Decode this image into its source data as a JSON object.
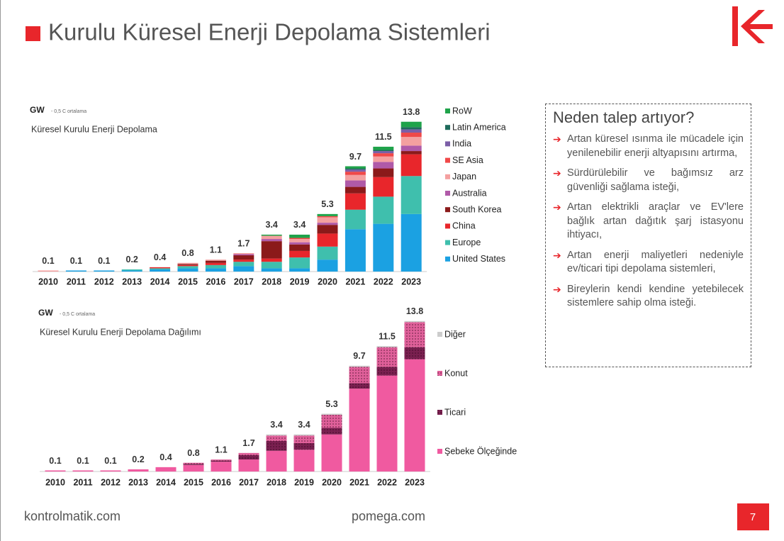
{
  "title": "Kurulu Küresel Enerji Depolama Sistemleri",
  "chart_data": [
    {
      "type": "stacked_bar",
      "unit": "GW",
      "note": "- 0,5 C ortalama",
      "title": "Küresel Kurulu Enerji Depolama",
      "categories": [
        "2010",
        "2011",
        "2012",
        "2013",
        "2014",
        "2015",
        "2016",
        "2017",
        "2018",
        "2019",
        "2020",
        "2021",
        "2022",
        "2023"
      ],
      "totals": [
        0.1,
        0.1,
        0.1,
        0.2,
        0.4,
        0.8,
        1.1,
        1.7,
        3.4,
        3.4,
        5.3,
        9.7,
        11.5,
        13.8
      ],
      "ylim": [
        0,
        14.5
      ],
      "series": [
        {
          "name": "United States",
          "color": "#1ba1e2",
          "values": [
            0,
            0.1,
            0.1,
            0.1,
            0.2,
            0.3,
            0.3,
            0.5,
            0.3,
            0.3,
            1.1,
            3.9,
            4.4,
            5.3
          ]
        },
        {
          "name": "Europe",
          "color": "#3fbfad",
          "values": [
            0,
            0,
            0,
            0.1,
            0.1,
            0.2,
            0.3,
            0.4,
            0.6,
            1.0,
            1.2,
            1.8,
            2.5,
            3.5
          ]
        },
        {
          "name": "China",
          "color": "#e8262b",
          "values": [
            0,
            0,
            0,
            0,
            0.1,
            0.1,
            0.2,
            0.2,
            0.3,
            0.6,
            1.2,
            1.5,
            1.8,
            2.0
          ]
        },
        {
          "name": "South Korea",
          "color": "#8b1a1a",
          "values": [
            0,
            0,
            0,
            0,
            0,
            0.1,
            0.2,
            0.4,
            1.6,
            0.6,
            0.8,
            0.6,
            0.8,
            0.3
          ]
        },
        {
          "name": "Australia",
          "color": "#b05aa8",
          "values": [
            0,
            0,
            0,
            0,
            0,
            0,
            0,
            0.1,
            0.2,
            0.2,
            0.2,
            0.6,
            0.6,
            0.5
          ]
        },
        {
          "name": "Japan",
          "color": "#f4a0a0",
          "values": [
            0.1,
            0,
            0,
            0,
            0,
            0.1,
            0.1,
            0.1,
            0.3,
            0.3,
            0.5,
            0.5,
            0.5,
            0.8
          ]
        },
        {
          "name": "SE Asia",
          "color": "#f04848",
          "values": [
            0,
            0,
            0,
            0,
            0,
            0,
            0,
            0,
            0,
            0.1,
            0.1,
            0.3,
            0.3,
            0.4
          ]
        },
        {
          "name": "India",
          "color": "#7b5ea7",
          "values": [
            0,
            0,
            0,
            0,
            0,
            0,
            0,
            0,
            0,
            0,
            0,
            0.2,
            0.2,
            0.3
          ]
        },
        {
          "name": "Latin America",
          "color": "#1e6b5c",
          "values": [
            0,
            0,
            0,
            0,
            0,
            0,
            0,
            0,
            0,
            0,
            0,
            0.1,
            0.1,
            0.2
          ]
        },
        {
          "name": "RoW",
          "color": "#1fa34a",
          "values": [
            0,
            0,
            0,
            0,
            0,
            0,
            0,
            0,
            0.1,
            0.3,
            0.2,
            0.2,
            0.3,
            0.5
          ]
        }
      ]
    },
    {
      "type": "stacked_bar",
      "unit": "GW",
      "note": "- 0,5 C ortalama",
      "title": "Küresel Kurulu Enerji Depolama Dağılımı",
      "categories": [
        "2010",
        "2011",
        "2012",
        "2013",
        "2014",
        "2015",
        "2016",
        "2017",
        "2018",
        "2019",
        "2020",
        "2021",
        "2022",
        "2023"
      ],
      "totals": [
        0.1,
        0.1,
        0.1,
        0.2,
        0.4,
        0.8,
        1.1,
        1.7,
        3.4,
        3.4,
        5.3,
        9.7,
        11.5,
        13.8
      ],
      "ylim": [
        0,
        14.5
      ],
      "series": [
        {
          "name": "Şebeke Ölçeğinde",
          "color": "#f05aa0",
          "values": [
            0.1,
            0.1,
            0.1,
            0.2,
            0.4,
            0.6,
            0.9,
            1.1,
            1.9,
            2.0,
            3.4,
            7.6,
            8.8,
            10.3
          ]
        },
        {
          "name": "Ticari",
          "color": "#7a2050",
          "pattern": "dots",
          "values": [
            0,
            0,
            0,
            0,
            0,
            0.1,
            0.1,
            0.4,
            0.9,
            0.6,
            0.6,
            0.5,
            0.8,
            1.1
          ]
        },
        {
          "name": "Konut",
          "color": "#e0609a",
          "pattern": "dots",
          "values": [
            0,
            0,
            0,
            0,
            0,
            0.1,
            0.1,
            0.2,
            0.5,
            0.7,
            1.2,
            1.5,
            1.8,
            2.3
          ]
        },
        {
          "name": "Diğer",
          "color": "#cccccc",
          "values": [
            0,
            0,
            0,
            0,
            0,
            0,
            0,
            0,
            0.1,
            0.1,
            0.1,
            0.1,
            0.1,
            0.1
          ]
        }
      ]
    }
  ],
  "panel": {
    "heading": "Neden talep artıyor?",
    "bullets": [
      "Artan küresel ısınma ile mücadele için yenilenebilir enerji altyapısını artırma,",
      "Sürdürülebilir ve bağımsız arz güvenliği sağlama isteği,",
      "Artan elektrikli araçlar ve EV'lere bağlık artan dağıtık şarj istasyonu ihtiyacı,",
      "Artan enerji maliyetleri nedeniyle ev/ticari tipi depolama sistemleri,",
      "Bireylerin kendi kendine yetebilecek sistemlere sahip olma isteği."
    ]
  },
  "footer": {
    "left": "kontrolmatik.com",
    "center": "pomega.com",
    "page": "7"
  }
}
